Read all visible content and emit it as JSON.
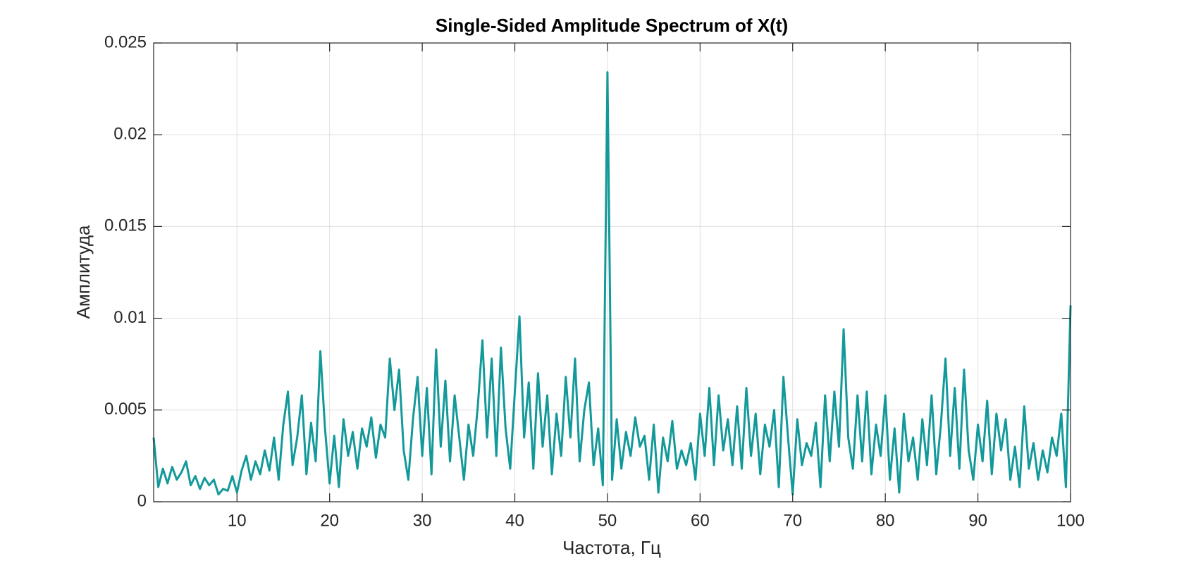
{
  "chart_data": {
    "type": "line",
    "title": "Single-Sided Amplitude Spectrum of X(t)",
    "x_label": "Частота, Гц",
    "y_label": "Амплитуда",
    "color": "#13999a",
    "grid": true,
    "xlim": [
      1,
      100
    ],
    "ylim": [
      0,
      0.025
    ],
    "xticks": [
      10,
      20,
      30,
      40,
      50,
      60,
      70,
      80,
      90,
      100
    ],
    "yticks": [
      0,
      0.005,
      0.01,
      0.015,
      0.02,
      0.025
    ],
    "x": [
      1,
      1.5,
      2,
      2.5,
      3,
      3.5,
      4,
      4.5,
      5,
      5.5,
      6,
      6.5,
      7,
      7.5,
      8,
      8.5,
      9,
      9.5,
      10,
      10.5,
      11,
      11.5,
      12,
      12.5,
      13,
      13.5,
      14,
      14.5,
      15,
      15.5,
      16,
      16.5,
      17,
      17.5,
      18,
      18.5,
      19,
      19.5,
      20,
      20.5,
      21,
      21.5,
      22,
      22.5,
      23,
      23.5,
      24,
      24.5,
      25,
      25.5,
      26,
      26.5,
      27,
      27.5,
      28,
      28.5,
      29,
      29.5,
      30,
      30.5,
      31,
      31.5,
      32,
      32.5,
      33,
      33.5,
      34,
      34.5,
      35,
      35.5,
      36,
      36.5,
      37,
      37.5,
      38,
      38.5,
      39,
      39.5,
      40,
      40.5,
      41,
      41.5,
      42,
      42.5,
      43,
      43.5,
      44,
      44.5,
      45,
      45.5,
      46,
      46.5,
      47,
      47.5,
      48,
      48.5,
      49,
      49.5,
      50,
      50.5,
      51,
      51.5,
      52,
      52.5,
      53,
      53.5,
      54,
      54.5,
      55,
      55.5,
      56,
      56.5,
      57,
      57.5,
      58,
      58.5,
      59,
      59.5,
      60,
      60.5,
      61,
      61.5,
      62,
      62.5,
      63,
      63.5,
      64,
      64.5,
      65,
      65.5,
      66,
      66.5,
      67,
      67.5,
      68,
      68.5,
      69,
      69.5,
      70,
      70.5,
      71,
      71.5,
      72,
      72.5,
      73,
      73.5,
      74,
      74.5,
      75,
      75.5,
      76,
      76.5,
      77,
      77.5,
      78,
      78.5,
      79,
      79.5,
      80,
      80.5,
      81,
      81.5,
      82,
      82.5,
      83,
      83.5,
      84,
      84.5,
      85,
      85.5,
      86,
      86.5,
      87,
      87.5,
      88,
      88.5,
      89,
      89.5,
      90,
      90.5,
      91,
      91.5,
      92,
      92.5,
      93,
      93.5,
      94,
      94.5,
      95,
      95.5,
      96,
      96.5,
      97,
      97.5,
      98,
      98.5,
      99,
      99.5,
      100
    ],
    "values": [
      0.0035,
      0.0008,
      0.0018,
      0.001,
      0.0019,
      0.0012,
      0.0016,
      0.0022,
      0.0009,
      0.0014,
      0.0007,
      0.0013,
      0.0009,
      0.0012,
      0.0004,
      0.0007,
      0.0006,
      0.0014,
      0.0005,
      0.0017,
      0.0025,
      0.0012,
      0.0022,
      0.0015,
      0.0028,
      0.0017,
      0.0035,
      0.0012,
      0.0042,
      0.006,
      0.002,
      0.0035,
      0.0058,
      0.0015,
      0.0043,
      0.0022,
      0.0082,
      0.004,
      0.001,
      0.0036,
      0.0008,
      0.0045,
      0.0025,
      0.0038,
      0.0018,
      0.004,
      0.003,
      0.0046,
      0.0024,
      0.0042,
      0.0035,
      0.0078,
      0.005,
      0.0072,
      0.0028,
      0.0012,
      0.0045,
      0.0068,
      0.0025,
      0.0062,
      0.0015,
      0.0083,
      0.003,
      0.0066,
      0.0022,
      0.0058,
      0.0035,
      0.0012,
      0.0042,
      0.0025,
      0.0052,
      0.0088,
      0.0035,
      0.0078,
      0.0025,
      0.0084,
      0.004,
      0.0018,
      0.006,
      0.0101,
      0.0035,
      0.0065,
      0.0018,
      0.007,
      0.003,
      0.0058,
      0.0015,
      0.0048,
      0.0025,
      0.0068,
      0.0035,
      0.0078,
      0.0022,
      0.005,
      0.0065,
      0.002,
      0.004,
      0.0009,
      0.0234,
      0.0012,
      0.0045,
      0.0018,
      0.0038,
      0.0025,
      0.0046,
      0.003,
      0.0036,
      0.0012,
      0.0042,
      0.0005,
      0.0035,
      0.0022,
      0.0044,
      0.0018,
      0.0028,
      0.002,
      0.0032,
      0.0012,
      0.0048,
      0.0025,
      0.0062,
      0.002,
      0.0058,
      0.0028,
      0.0045,
      0.002,
      0.0052,
      0.0018,
      0.0062,
      0.0025,
      0.0048,
      0.0015,
      0.0042,
      0.003,
      0.005,
      0.0008,
      0.0068,
      0.0035,
      0.0004,
      0.0045,
      0.002,
      0.0032,
      0.0025,
      0.0043,
      0.0008,
      0.0058,
      0.0022,
      0.006,
      0.003,
      0.0094,
      0.0035,
      0.0018,
      0.0058,
      0.0022,
      0.006,
      0.0015,
      0.0042,
      0.0025,
      0.0058,
      0.0012,
      0.004,
      0.0005,
      0.0048,
      0.0022,
      0.0035,
      0.0012,
      0.0045,
      0.002,
      0.0058,
      0.0015,
      0.0042,
      0.0078,
      0.0025,
      0.0062,
      0.0018,
      0.0072,
      0.0028,
      0.0012,
      0.0042,
      0.0022,
      0.0055,
      0.0015,
      0.0048,
      0.0028,
      0.0045,
      0.0012,
      0.003,
      0.0008,
      0.0052,
      0.0018,
      0.0032,
      0.0012,
      0.0028,
      0.0016,
      0.0035,
      0.0025,
      0.0048,
      0.0008,
      0.0107
    ]
  }
}
